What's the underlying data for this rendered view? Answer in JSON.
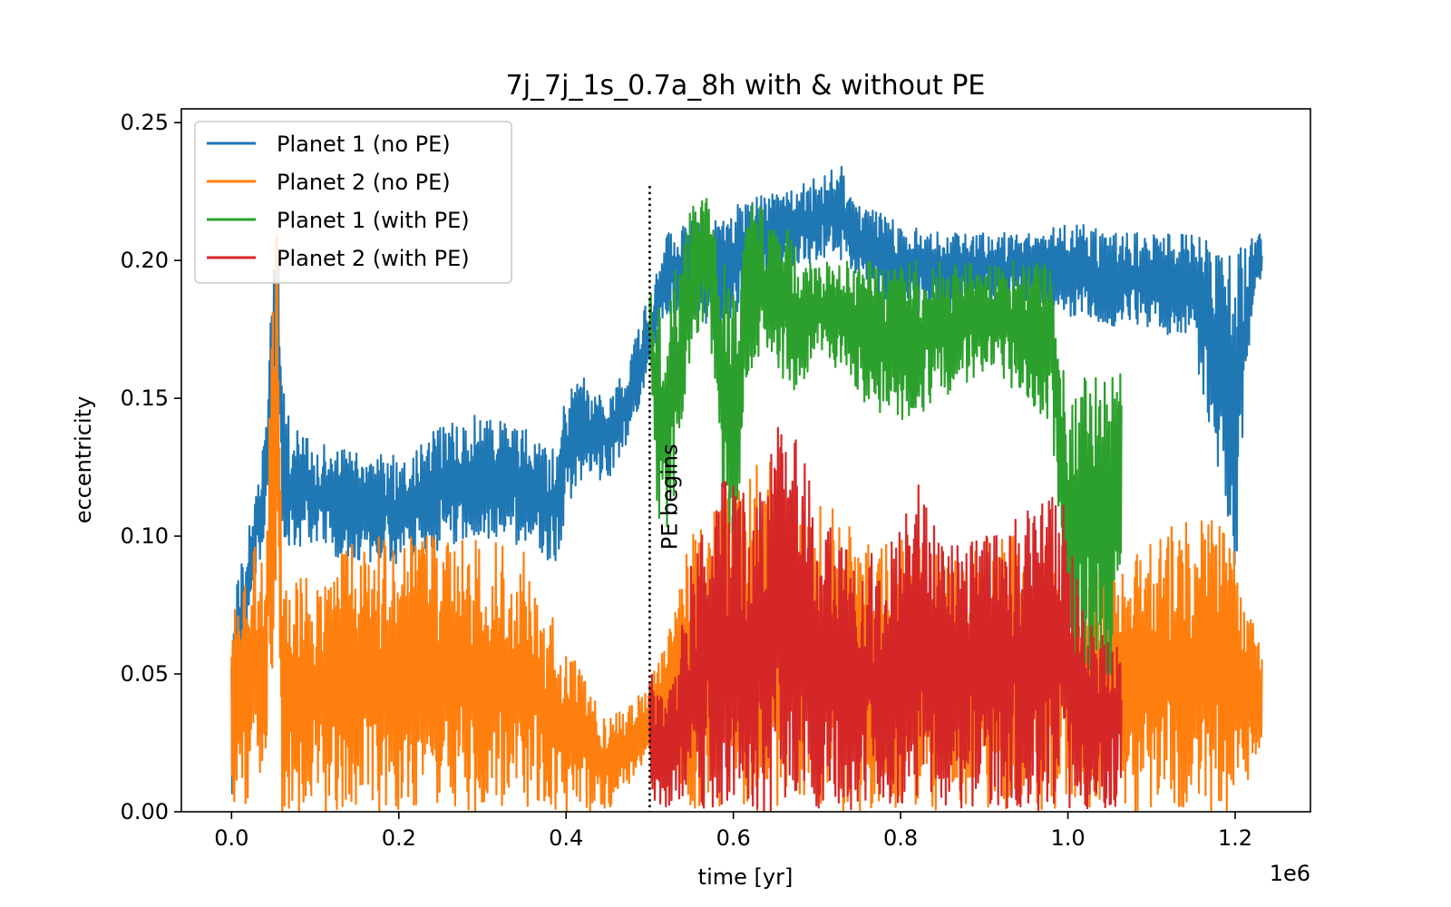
{
  "chart_data": {
    "type": "line",
    "title": "7j_7j_1s_0.7a_8h with & without PE",
    "xlabel": "time [yr]",
    "ylabel": "eccentricity",
    "x_offset_text": "1e6",
    "xlim": [
      -0.06,
      1.29
    ],
    "ylim": [
      0.0,
      0.255
    ],
    "xticks": [
      0.0,
      0.2,
      0.4,
      0.6,
      0.8,
      1.0,
      1.2
    ],
    "xtick_labels": [
      "0.0",
      "0.2",
      "0.4",
      "0.6",
      "0.8",
      "1.0",
      "1.2"
    ],
    "yticks": [
      0.0,
      0.05,
      0.1,
      0.15,
      0.2,
      0.25
    ],
    "ytick_labels": [
      "0.00",
      "0.05",
      "0.10",
      "0.15",
      "0.20",
      "0.25"
    ],
    "grid": false,
    "legend_position": "top-left",
    "annotation": {
      "x": 0.5,
      "y_top": 0.227,
      "text": "PE begins"
    },
    "series": [
      {
        "name": "Planet 1 (no PE)",
        "color": "#1f77b4",
        "x_range": [
          0.0,
          1.232
        ],
        "band": [
          [
            0.0,
            0.0,
            0.07
          ],
          [
            0.01,
            0.04,
            0.09
          ],
          [
            0.02,
            0.07,
            0.105
          ],
          [
            0.03,
            0.085,
            0.12
          ],
          [
            0.04,
            0.1,
            0.135
          ],
          [
            0.05,
            0.14,
            0.2
          ],
          [
            0.055,
            0.17,
            0.22
          ],
          [
            0.06,
            0.1,
            0.16
          ],
          [
            0.07,
            0.095,
            0.14
          ],
          [
            0.1,
            0.095,
            0.135
          ],
          [
            0.15,
            0.09,
            0.13
          ],
          [
            0.2,
            0.09,
            0.13
          ],
          [
            0.25,
            0.095,
            0.14
          ],
          [
            0.3,
            0.1,
            0.145
          ],
          [
            0.35,
            0.095,
            0.14
          ],
          [
            0.39,
            0.09,
            0.13
          ],
          [
            0.4,
            0.11,
            0.155
          ],
          [
            0.42,
            0.12,
            0.158
          ],
          [
            0.45,
            0.12,
            0.15
          ],
          [
            0.47,
            0.13,
            0.16
          ],
          [
            0.5,
            0.16,
            0.19
          ],
          [
            0.52,
            0.18,
            0.21
          ],
          [
            0.55,
            0.18,
            0.215
          ],
          [
            0.58,
            0.17,
            0.215
          ],
          [
            0.6,
            0.18,
            0.22
          ],
          [
            0.65,
            0.195,
            0.225
          ],
          [
            0.7,
            0.2,
            0.23
          ],
          [
            0.73,
            0.2,
            0.235
          ],
          [
            0.75,
            0.19,
            0.22
          ],
          [
            0.8,
            0.18,
            0.215
          ],
          [
            0.85,
            0.18,
            0.21
          ],
          [
            0.9,
            0.185,
            0.21
          ],
          [
            0.95,
            0.185,
            0.21
          ],
          [
            1.0,
            0.18,
            0.215
          ],
          [
            1.05,
            0.175,
            0.21
          ],
          [
            1.1,
            0.175,
            0.21
          ],
          [
            1.15,
            0.17,
            0.21
          ],
          [
            1.18,
            0.12,
            0.205
          ],
          [
            1.2,
            0.08,
            0.205
          ],
          [
            1.22,
            0.18,
            0.21
          ],
          [
            1.232,
            0.19,
            0.21
          ]
        ]
      },
      {
        "name": "Planet 2 (no PE)",
        "color": "#ff7f0e",
        "x_range": [
          0.0,
          1.232
        ],
        "band": [
          [
            0.0,
            0.0,
            0.072
          ],
          [
            0.02,
            0.0,
            0.1
          ],
          [
            0.04,
            0.02,
            0.09
          ],
          [
            0.05,
            0.05,
            0.2
          ],
          [
            0.055,
            0.1,
            0.24
          ],
          [
            0.06,
            0.0,
            0.08
          ],
          [
            0.1,
            0.0,
            0.09
          ],
          [
            0.15,
            0.0,
            0.1
          ],
          [
            0.2,
            0.0,
            0.1
          ],
          [
            0.3,
            0.0,
            0.1
          ],
          [
            0.35,
            0.0,
            0.095
          ],
          [
            0.4,
            0.0,
            0.06
          ],
          [
            0.45,
            0.0,
            0.035
          ],
          [
            0.5,
            0.02,
            0.045
          ],
          [
            0.55,
            0.0,
            0.1
          ],
          [
            0.6,
            0.0,
            0.12
          ],
          [
            0.65,
            0.0,
            0.13
          ],
          [
            0.7,
            0.0,
            0.12
          ],
          [
            0.75,
            0.0,
            0.1
          ],
          [
            0.8,
            0.0,
            0.1
          ],
          [
            0.85,
            0.0,
            0.095
          ],
          [
            0.9,
            0.0,
            0.1
          ],
          [
            0.95,
            0.0,
            0.1
          ],
          [
            1.0,
            0.0,
            0.095
          ],
          [
            1.05,
            0.0,
            0.085
          ],
          [
            1.1,
            0.0,
            0.1
          ],
          [
            1.15,
            0.0,
            0.11
          ],
          [
            1.2,
            0.0,
            0.1
          ],
          [
            1.232,
            0.02,
            0.06
          ]
        ]
      },
      {
        "name": "Planet 1 (with PE)",
        "color": "#2ca02c",
        "x_range": [
          0.5,
          1.064
        ],
        "band": [
          [
            0.5,
            0.17,
            0.19
          ],
          [
            0.51,
            0.1,
            0.19
          ],
          [
            0.52,
            0.1,
            0.17
          ],
          [
            0.53,
            0.11,
            0.2
          ],
          [
            0.55,
            0.17,
            0.22
          ],
          [
            0.57,
            0.18,
            0.225
          ],
          [
            0.59,
            0.1,
            0.2
          ],
          [
            0.6,
            0.09,
            0.19
          ],
          [
            0.62,
            0.16,
            0.22
          ],
          [
            0.65,
            0.16,
            0.225
          ],
          [
            0.68,
            0.15,
            0.2
          ],
          [
            0.7,
            0.17,
            0.2
          ],
          [
            0.75,
            0.15,
            0.2
          ],
          [
            0.8,
            0.14,
            0.2
          ],
          [
            0.85,
            0.15,
            0.2
          ],
          [
            0.9,
            0.16,
            0.2
          ],
          [
            0.95,
            0.15,
            0.2
          ],
          [
            0.98,
            0.14,
            0.2
          ],
          [
            1.0,
            0.05,
            0.15
          ],
          [
            1.02,
            0.05,
            0.16
          ],
          [
            1.04,
            0.04,
            0.16
          ],
          [
            1.064,
            0.05,
            0.16
          ]
        ]
      },
      {
        "name": "Planet 2 (with PE)",
        "color": "#d62728",
        "x_range": [
          0.5,
          1.064
        ],
        "band": [
          [
            0.5,
            0.0,
            0.055
          ],
          [
            0.52,
            0.0,
            0.04
          ],
          [
            0.55,
            0.0,
            0.09
          ],
          [
            0.58,
            0.0,
            0.12
          ],
          [
            0.6,
            0.0,
            0.125
          ],
          [
            0.62,
            0.0,
            0.11
          ],
          [
            0.65,
            0.0,
            0.14
          ],
          [
            0.67,
            0.0,
            0.145
          ],
          [
            0.7,
            0.0,
            0.11
          ],
          [
            0.75,
            0.0,
            0.09
          ],
          [
            0.8,
            0.0,
            0.105
          ],
          [
            0.82,
            0.0,
            0.12
          ],
          [
            0.85,
            0.0,
            0.1
          ],
          [
            0.9,
            0.0,
            0.1
          ],
          [
            0.95,
            0.0,
            0.11
          ],
          [
            0.98,
            0.0,
            0.115
          ],
          [
            1.0,
            0.0,
            0.115
          ],
          [
            1.02,
            0.0,
            0.07
          ],
          [
            1.04,
            0.0,
            0.065
          ],
          [
            1.064,
            0.0,
            0.065
          ]
        ]
      }
    ]
  }
}
